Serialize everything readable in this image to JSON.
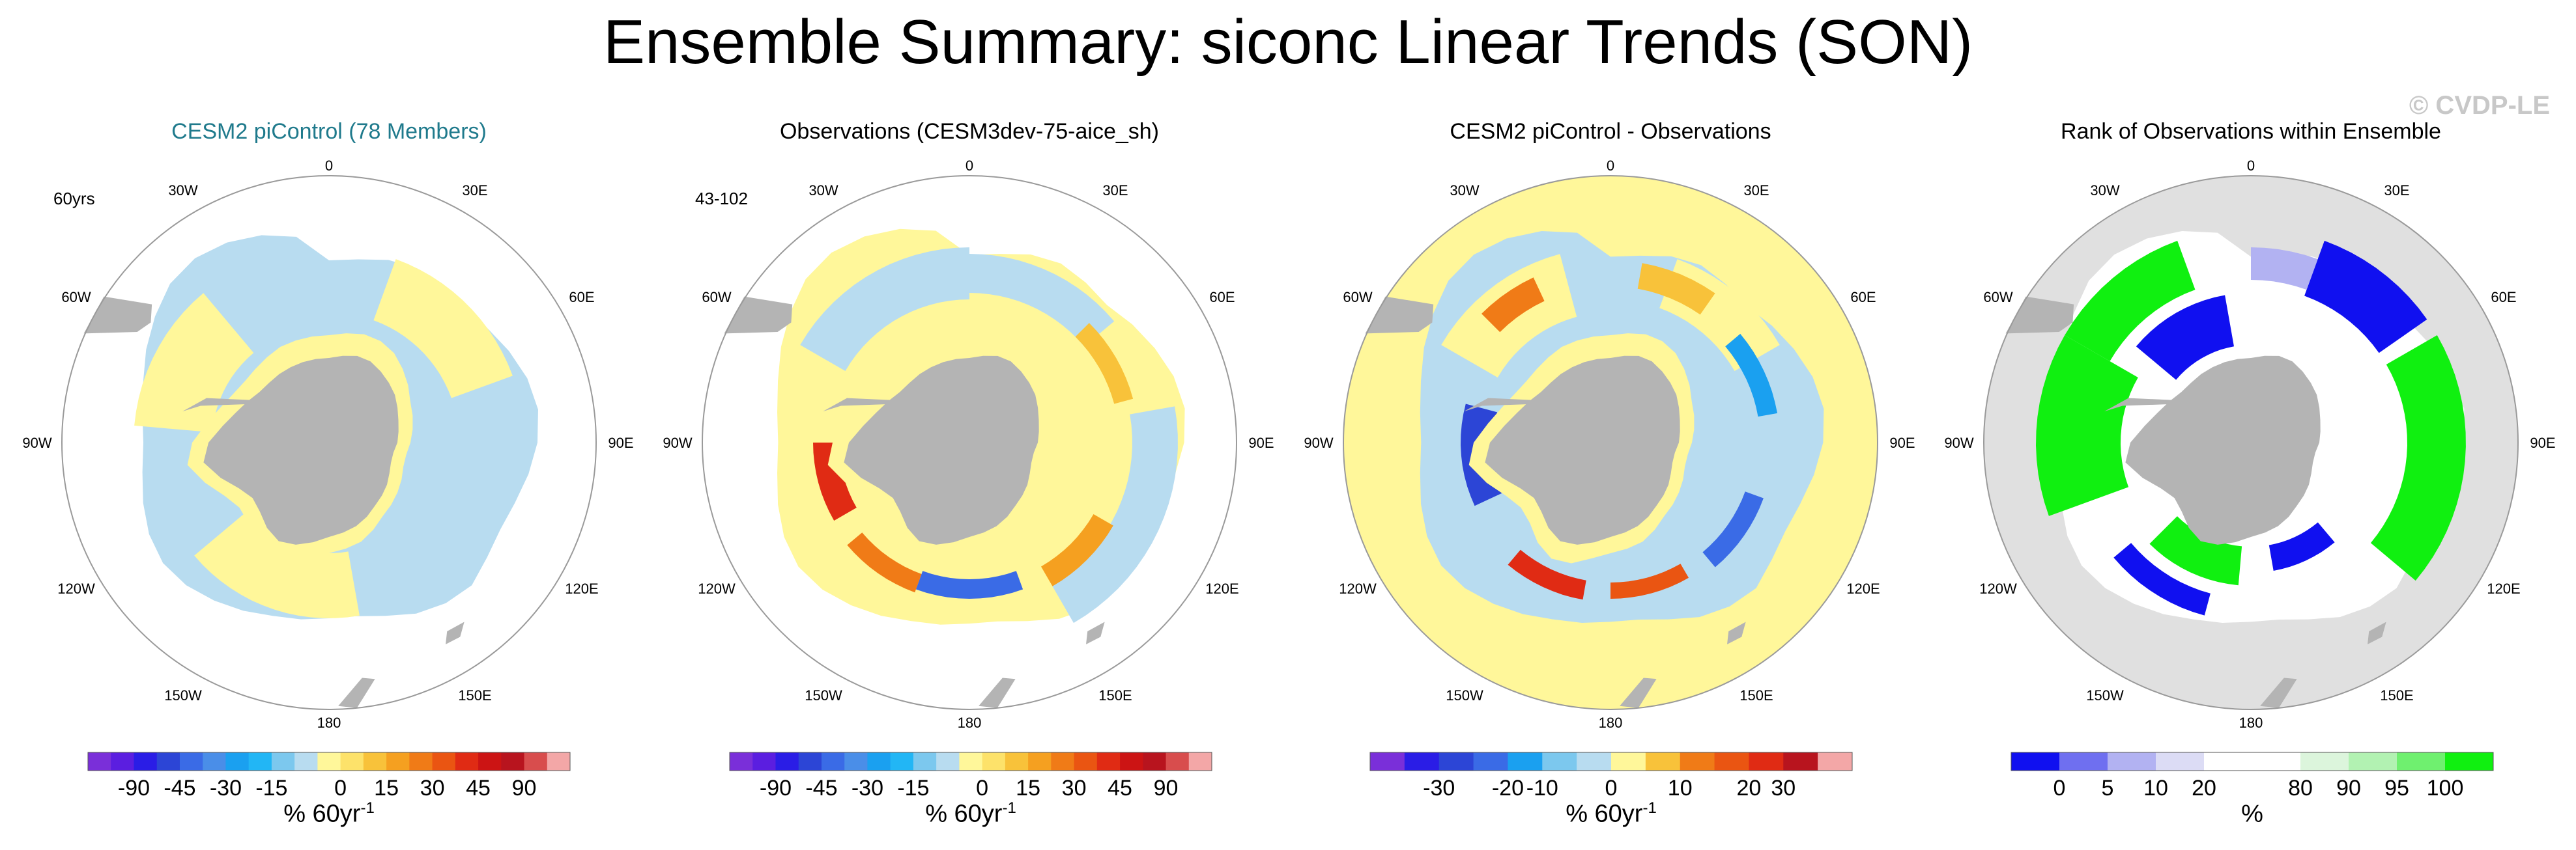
{
  "figure": {
    "title": "Ensemble Summary: siconc Linear Trends (SON)",
    "watermark": "© CVDP-LE"
  },
  "panels": [
    {
      "title": "CESM2 piControl (78 Members)",
      "note": "60yrs",
      "scheme": "ensemble",
      "colorbar": {
        "labels": [
          "-90",
          "-45",
          "-30",
          "-15",
          "0",
          "15",
          "30",
          "45",
          "90"
        ],
        "unit": "% 60yr",
        "unit_exp": "-1",
        "colors": [
          "#7a2fd9",
          "#5b1ee0",
          "#2a1de6",
          "#2c45d6",
          "#3a6be6",
          "#4a8ee8",
          "#1aa0f0",
          "#22b6f5",
          "#7cc8ee",
          "#b8dcf0",
          "#fff79a",
          "#fde26a",
          "#f8c23a",
          "#f5a020",
          "#f07b17",
          "#ea5512",
          "#e02b14",
          "#cc1414",
          "#b8141e",
          "#d84d4d",
          "#f3a7a7"
        ]
      }
    },
    {
      "title": "Observations (CESM3dev-75-aice_sh)",
      "note": "43-102",
      "scheme": "observations",
      "colorbar": {
        "labels": [
          "-90",
          "-45",
          "-30",
          "-15",
          "0",
          "15",
          "30",
          "45",
          "90"
        ],
        "unit": "% 60yr",
        "unit_exp": "-1",
        "colors": [
          "#7a2fd9",
          "#5b1ee0",
          "#2a1de6",
          "#2c45d6",
          "#3a6be6",
          "#4a8ee8",
          "#1aa0f0",
          "#22b6f5",
          "#7cc8ee",
          "#b8dcf0",
          "#fff79a",
          "#fde26a",
          "#f8c23a",
          "#f5a020",
          "#f07b17",
          "#ea5512",
          "#e02b14",
          "#cc1414",
          "#b8141e",
          "#d84d4d",
          "#f3a7a7"
        ]
      }
    },
    {
      "title": "CESM2 piControl - Observations",
      "note": "",
      "scheme": "difference",
      "colorbar": {
        "labels": [
          "-30",
          "-20",
          "-10",
          "0",
          "10",
          "20",
          "30"
        ],
        "unit": "% 60yr",
        "unit_exp": "-1",
        "colors": [
          "#7a2fd9",
          "#2a1de6",
          "#2c45d6",
          "#3a6be6",
          "#1aa0f0",
          "#7cc8ee",
          "#b8dcf0",
          "#fff79a",
          "#f8c23a",
          "#f07b17",
          "#ea5512",
          "#e02b14",
          "#b8141e",
          "#f3a7a7"
        ]
      }
    },
    {
      "title": "Rank of Observations within Ensemble",
      "note": "",
      "scheme": "rank",
      "colorbar": {
        "labels": [
          "0",
          "5",
          "10",
          "20",
          "80",
          "90",
          "95",
          "100"
        ],
        "unit": "%",
        "unit_exp": "",
        "colors": [
          "#1010f0",
          "#6f6ff0",
          "#b2b2f2",
          "#dcdcf5",
          "#ffffff",
          "#ffffff",
          "#dcf5dc",
          "#b2f2b2",
          "#6ff06f",
          "#10f010"
        ]
      }
    }
  ],
  "map_labels": {
    "top": "0",
    "bottom": "180",
    "left_ring": [
      "30W",
      "60W",
      "90W",
      "120W",
      "150W"
    ],
    "right_ring": [
      "30E",
      "60E",
      "90E",
      "120E",
      "150E"
    ]
  }
}
